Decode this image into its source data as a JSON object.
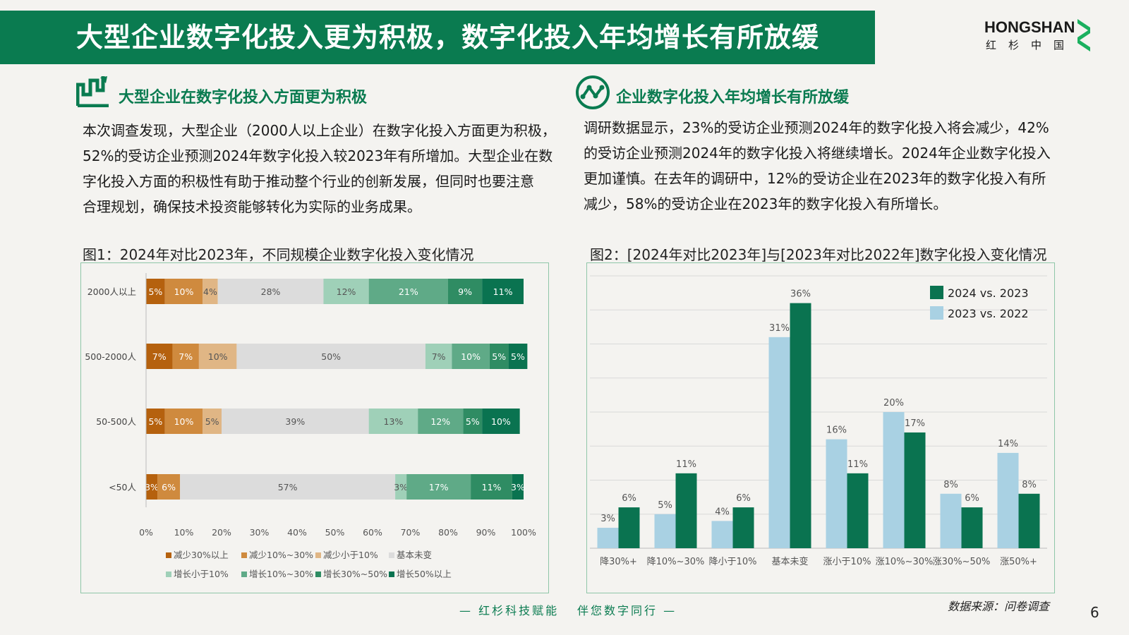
{
  "header": {
    "title": "大型企业数字化投入更为积极，数字化投入年均增长有所放缓"
  },
  "logo": {
    "name": "HONGSHAN",
    "cn": "红杉中国",
    "mark_color": "#1bb05f"
  },
  "left": {
    "heading": "大型企业在数字化投入方面更为积极",
    "paragraph": "本次调查发现，大型企业（2000人以上企业）在数字化投入方面更为积极，\n52%的受访企业预测2024年数字化投入较2023年有所增加。大型企业在数\n字化投入方面的积极性有助于推动整个行业的创新发展，但同时也要注意\n合理规划，确保技术投资能够转化为实际的业务成果。",
    "figure_title": "图1：2024年对比2023年，不同规模企业数字化投入变化情况"
  },
  "right": {
    "heading": "企业数字化投入年均增长有所放缓",
    "paragraph": "调研数据显示，23%的受访企业预测2024年的数字化投入将会减少，42%\n的受访企业预测2024年的数字化投入将继续增长。2024年企业数字化投入\n更加谨慎。在去年的调研中，12%的受访企业在2023年的数字化投入有所\n减少，58%的受访企业在2023年的数字化投入有所增长。",
    "figure_title": "图2：[2024年对比2023年]与[2023年对比2022年]数字化投入变化情况"
  },
  "chart_data": [
    {
      "type": "bar",
      "orientation": "horizontal-stacked-100",
      "categories": [
        "2000人以上",
        "500-2000人",
        "50-500人",
        "<50人"
      ],
      "series": [
        {
          "name": "减少30%以上",
          "color": "#b5610e",
          "values": [
            5,
            7,
            5,
            3
          ]
        },
        {
          "name": "减少10%~30%",
          "color": "#cf8a3e",
          "values": [
            10,
            7,
            10,
            6
          ]
        },
        {
          "name": "减少小于10%",
          "color": "#e0b685",
          "values": [
            4,
            10,
            5,
            0
          ]
        },
        {
          "name": "基本未变",
          "color": "#dcdcdc",
          "values": [
            28,
            50,
            39,
            57
          ]
        },
        {
          "name": "增长小于10%",
          "color": "#9fd0b8",
          "values": [
            12,
            7,
            13,
            3
          ]
        },
        {
          "name": "增长10%~30%",
          "color": "#5faa87",
          "values": [
            21,
            10,
            12,
            17
          ]
        },
        {
          "name": "增长30%~50%",
          "color": "#2f8c63",
          "values": [
            9,
            5,
            5,
            11
          ]
        },
        {
          "name": "增长50%以上",
          "color": "#0a7350",
          "values": [
            11,
            5,
            10,
            3
          ]
        }
      ],
      "xticks": [
        "0%",
        "10%",
        "20%",
        "30%",
        "40%",
        "50%",
        "60%",
        "70%",
        "80%",
        "90%",
        "100%"
      ],
      "xlim": [
        0,
        100
      ],
      "legend": "bottom"
    },
    {
      "type": "bar",
      "categories": [
        "降30%+",
        "降10%~30%",
        "降小于10%",
        "基本未变",
        "涨小于10%",
        "涨10%~30%",
        "涨30%~50%",
        "涨50%+"
      ],
      "series": [
        {
          "name": "2023 vs. 2022",
          "color": "#a9d1e3",
          "values": [
            3,
            5,
            4,
            31,
            16,
            20,
            8,
            14
          ]
        },
        {
          "name": "2024 vs. 2023",
          "color": "#0a7350",
          "values": [
            6,
            11,
            6,
            36,
            11,
            17,
            6,
            8
          ]
        }
      ],
      "ylim": [
        0,
        40
      ],
      "grid": true,
      "legend": "top-right"
    }
  ],
  "footer": {
    "slogan_left": "— 红杉科技赋能",
    "slogan_right": "伴您数字同行 —",
    "source": "数据来源：问卷调查",
    "page": "6"
  }
}
